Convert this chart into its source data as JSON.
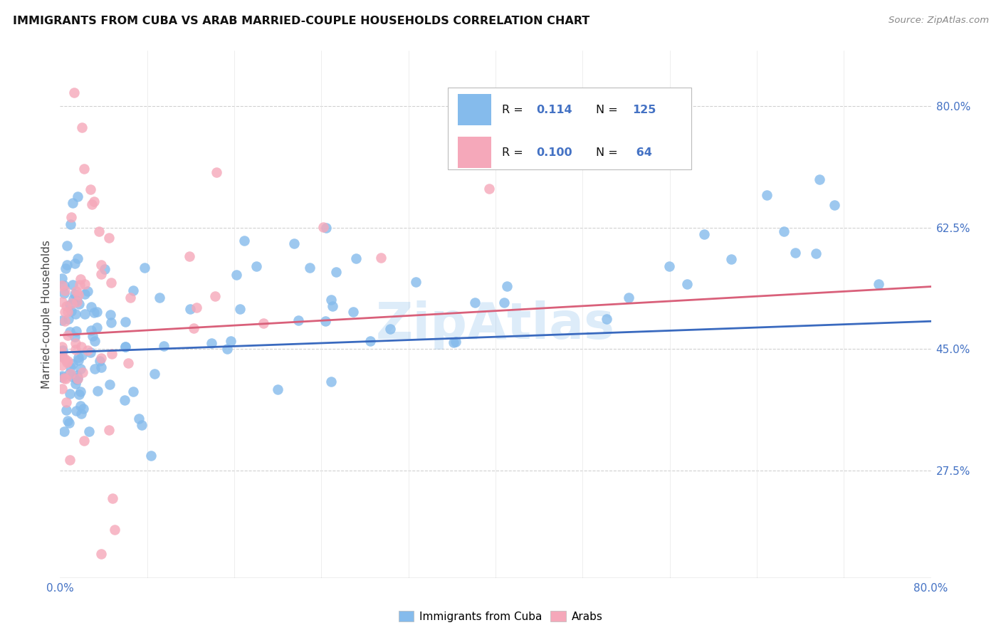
{
  "title": "IMMIGRANTS FROM CUBA VS ARAB MARRIED-COUPLE HOUSEHOLDS CORRELATION CHART",
  "source": "Source: ZipAtlas.com",
  "ylabel": "Married-couple Households",
  "ytick_vals": [
    0.8,
    0.625,
    0.45,
    0.275
  ],
  "ytick_labels": [
    "80.0%",
    "62.5%",
    "45.0%",
    "27.5%"
  ],
  "xtick_labels": [
    "0.0%",
    "",
    "",
    "",
    "",
    "",
    "",
    "",
    "",
    "80.0%"
  ],
  "xlim": [
    0.0,
    0.8
  ],
  "ylim": [
    0.12,
    0.88
  ],
  "legend_r_cuba": "0.114",
  "legend_n_cuba": "125",
  "legend_r_arab": "0.100",
  "legend_n_arab": " 64",
  "color_cuba": "#85BBEC",
  "color_arab": "#F5A8BA",
  "color_blue_line": "#3a6abf",
  "color_pink_line": "#d9607a",
  "color_grid": "#d0d0d0",
  "color_ytick": "#4472c4",
  "color_xtick": "#4472c4",
  "watermark_text": "ZipAtlas",
  "watermark_color": "#85BBEC",
  "watermark_alpha": 0.28,
  "legend_label_cuba": "Immigrants from Cuba",
  "legend_label_arab": "Arabs"
}
